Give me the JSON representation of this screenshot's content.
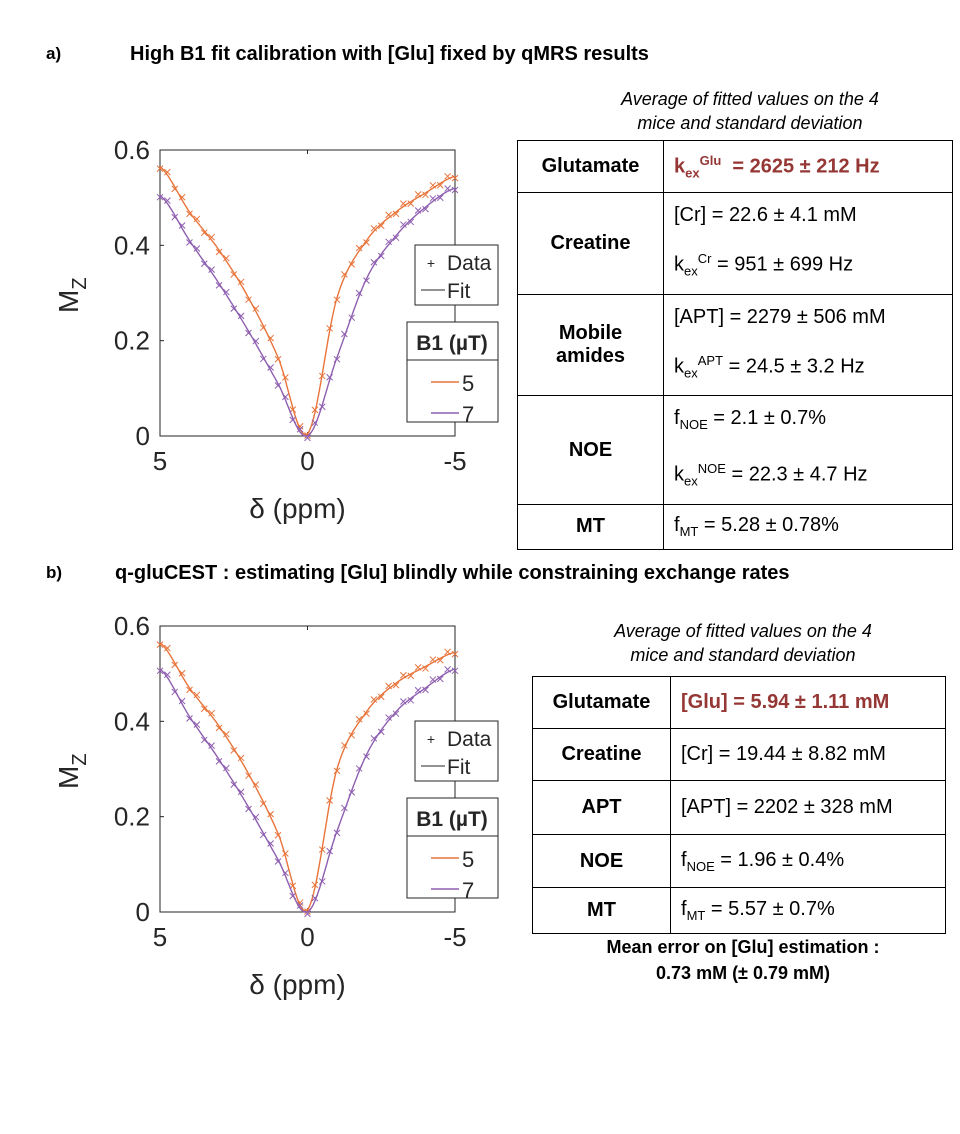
{
  "panel_a": {
    "tag": "a)",
    "title": "High B1 fit calibration with [Glu] fixed by qMRS results",
    "caption_line1": "Average of fitted values on the 4",
    "caption_line2": "mice and standard deviation",
    "rows": [
      {
        "species": [
          "Glutamate"
        ],
        "lines": [
          {
            "base": "k",
            "sub": "ex",
            "sup": "Glu",
            "rest": "  = 2625 ± 212 Hz",
            "highlight": true
          }
        ]
      },
      {
        "species": [
          "Creatine"
        ],
        "lines": [
          {
            "base": "[Cr] = 22.6 ± 4.1 mM"
          },
          {
            "base": "k",
            "sub": "ex",
            "sup": "Cr",
            "rest": " = 951 ± 699 Hz"
          }
        ]
      },
      {
        "species": [
          "Mobile",
          "amides"
        ],
        "lines": [
          {
            "base": "[APT] = 2279 ± 506 mM"
          },
          {
            "base": "k",
            "sub": "ex",
            "sup": "APT",
            "rest": " = 24.5 ± 3.2 Hz"
          }
        ]
      },
      {
        "species": [
          "NOE"
        ],
        "lines": [
          {
            "base": "f",
            "sub": "NOE",
            "rest": " = 2.1 ± 0.7%"
          },
          {
            "base": "k",
            "sub": "ex",
            "sup": "NOE",
            "rest": " = 22.3 ± 4.7 Hz"
          }
        ]
      },
      {
        "species": [
          "MT"
        ],
        "lines": [
          {
            "base": "f",
            "sub": "MT",
            "rest": " = 5.28 ± 0.78%"
          }
        ]
      }
    ]
  },
  "panel_b": {
    "tag": "b)",
    "title": "q-gluCEST : estimating [Glu] blindly while constraining exchange rates",
    "caption_line1": "Average of fitted values on the 4",
    "caption_line2": "mice and standard deviation",
    "rows": [
      {
        "species": [
          "Glutamate"
        ],
        "lines": [
          {
            "base": "[Glu] = 5.94 ± 1.11 mM",
            "highlight": true
          }
        ]
      },
      {
        "species": [
          "Creatine"
        ],
        "lines": [
          {
            "base": "[Cr] = 19.44 ± 8.82 mM"
          }
        ]
      },
      {
        "species": [
          "APT"
        ],
        "lines": [
          {
            "base": "[APT] = 2202 ± 328 mM"
          }
        ]
      },
      {
        "species": [
          "NOE"
        ],
        "lines": [
          {
            "base": "f",
            "sub": "NOE",
            "rest": " = 1.96 ± 0.4%"
          }
        ]
      },
      {
        "species": [
          "MT"
        ],
        "lines": [
          {
            "base": "f",
            "sub": "MT",
            "rest": " = 5.57 ± 0.7%"
          }
        ]
      }
    ],
    "error_line1": "Mean error on [Glu] estimation :",
    "error_line2": "0.73 mM (± 0.79 mM)"
  },
  "colors": {
    "b1_5": "#e8743b",
    "b1_7": "#8e5fb0",
    "highlight": "#953735",
    "axis": "#262626"
  },
  "chart_data": [
    {
      "type": "line",
      "xlabel": "δ (ppm)",
      "ylabel": "M",
      "ylabel_sub": "Z",
      "xlim": [
        5,
        -5
      ],
      "ylim": [
        0,
        0.6
      ],
      "xticks": [
        "5",
        "0",
        "-5"
      ],
      "yticks": [
        "0",
        "0.2",
        "0.4",
        "0.6"
      ],
      "legend_markers": [
        {
          "symbol": "+",
          "label": "Data"
        },
        {
          "symbol": "line",
          "label": "Fit"
        }
      ],
      "legend_title": "B1 (µT)",
      "series": [
        {
          "name": "5",
          "color": "#e8743b",
          "x": [
            5,
            4,
            3,
            2,
            1,
            0,
            -1,
            -2,
            -3,
            -4,
            -5
          ],
          "y": [
            0.565,
            0.47,
            0.39,
            0.29,
            0.165,
            0.005,
            0.29,
            0.41,
            0.47,
            0.51,
            0.545
          ]
        },
        {
          "name": "7",
          "color": "#8e5fb0",
          "x": [
            5,
            4,
            3,
            2,
            1,
            0,
            -1,
            -2,
            -3,
            -4,
            -5
          ],
          "y": [
            0.505,
            0.41,
            0.32,
            0.22,
            0.11,
            0.0,
            0.165,
            0.33,
            0.42,
            0.48,
            0.52
          ]
        }
      ]
    },
    {
      "type": "line",
      "xlabel": "δ (ppm)",
      "ylabel": "M",
      "ylabel_sub": "Z",
      "xlim": [
        5,
        -5
      ],
      "ylim": [
        0,
        0.6
      ],
      "xticks": [
        "5",
        "0",
        "-5"
      ],
      "yticks": [
        "0",
        "0.2",
        "0.4",
        "0.6"
      ],
      "legend_markers": [
        {
          "symbol": "+",
          "label": "Data"
        },
        {
          "symbol": "line",
          "label": "Fit"
        }
      ],
      "legend_title": "B1 (µT)",
      "series": [
        {
          "name": "5",
          "color": "#e8743b",
          "x": [
            5,
            4,
            3,
            2,
            1,
            0,
            -1,
            -2,
            -3,
            -4,
            -5
          ],
          "y": [
            0.565,
            0.47,
            0.39,
            0.29,
            0.165,
            0.005,
            0.3,
            0.42,
            0.48,
            0.515,
            0.545
          ]
        },
        {
          "name": "7",
          "color": "#8e5fb0",
          "x": [
            5,
            4,
            3,
            2,
            1,
            0,
            -1,
            -2,
            -3,
            -4,
            -5
          ],
          "y": [
            0.51,
            0.41,
            0.32,
            0.22,
            0.11,
            0.0,
            0.17,
            0.33,
            0.42,
            0.47,
            0.51
          ]
        }
      ]
    }
  ]
}
